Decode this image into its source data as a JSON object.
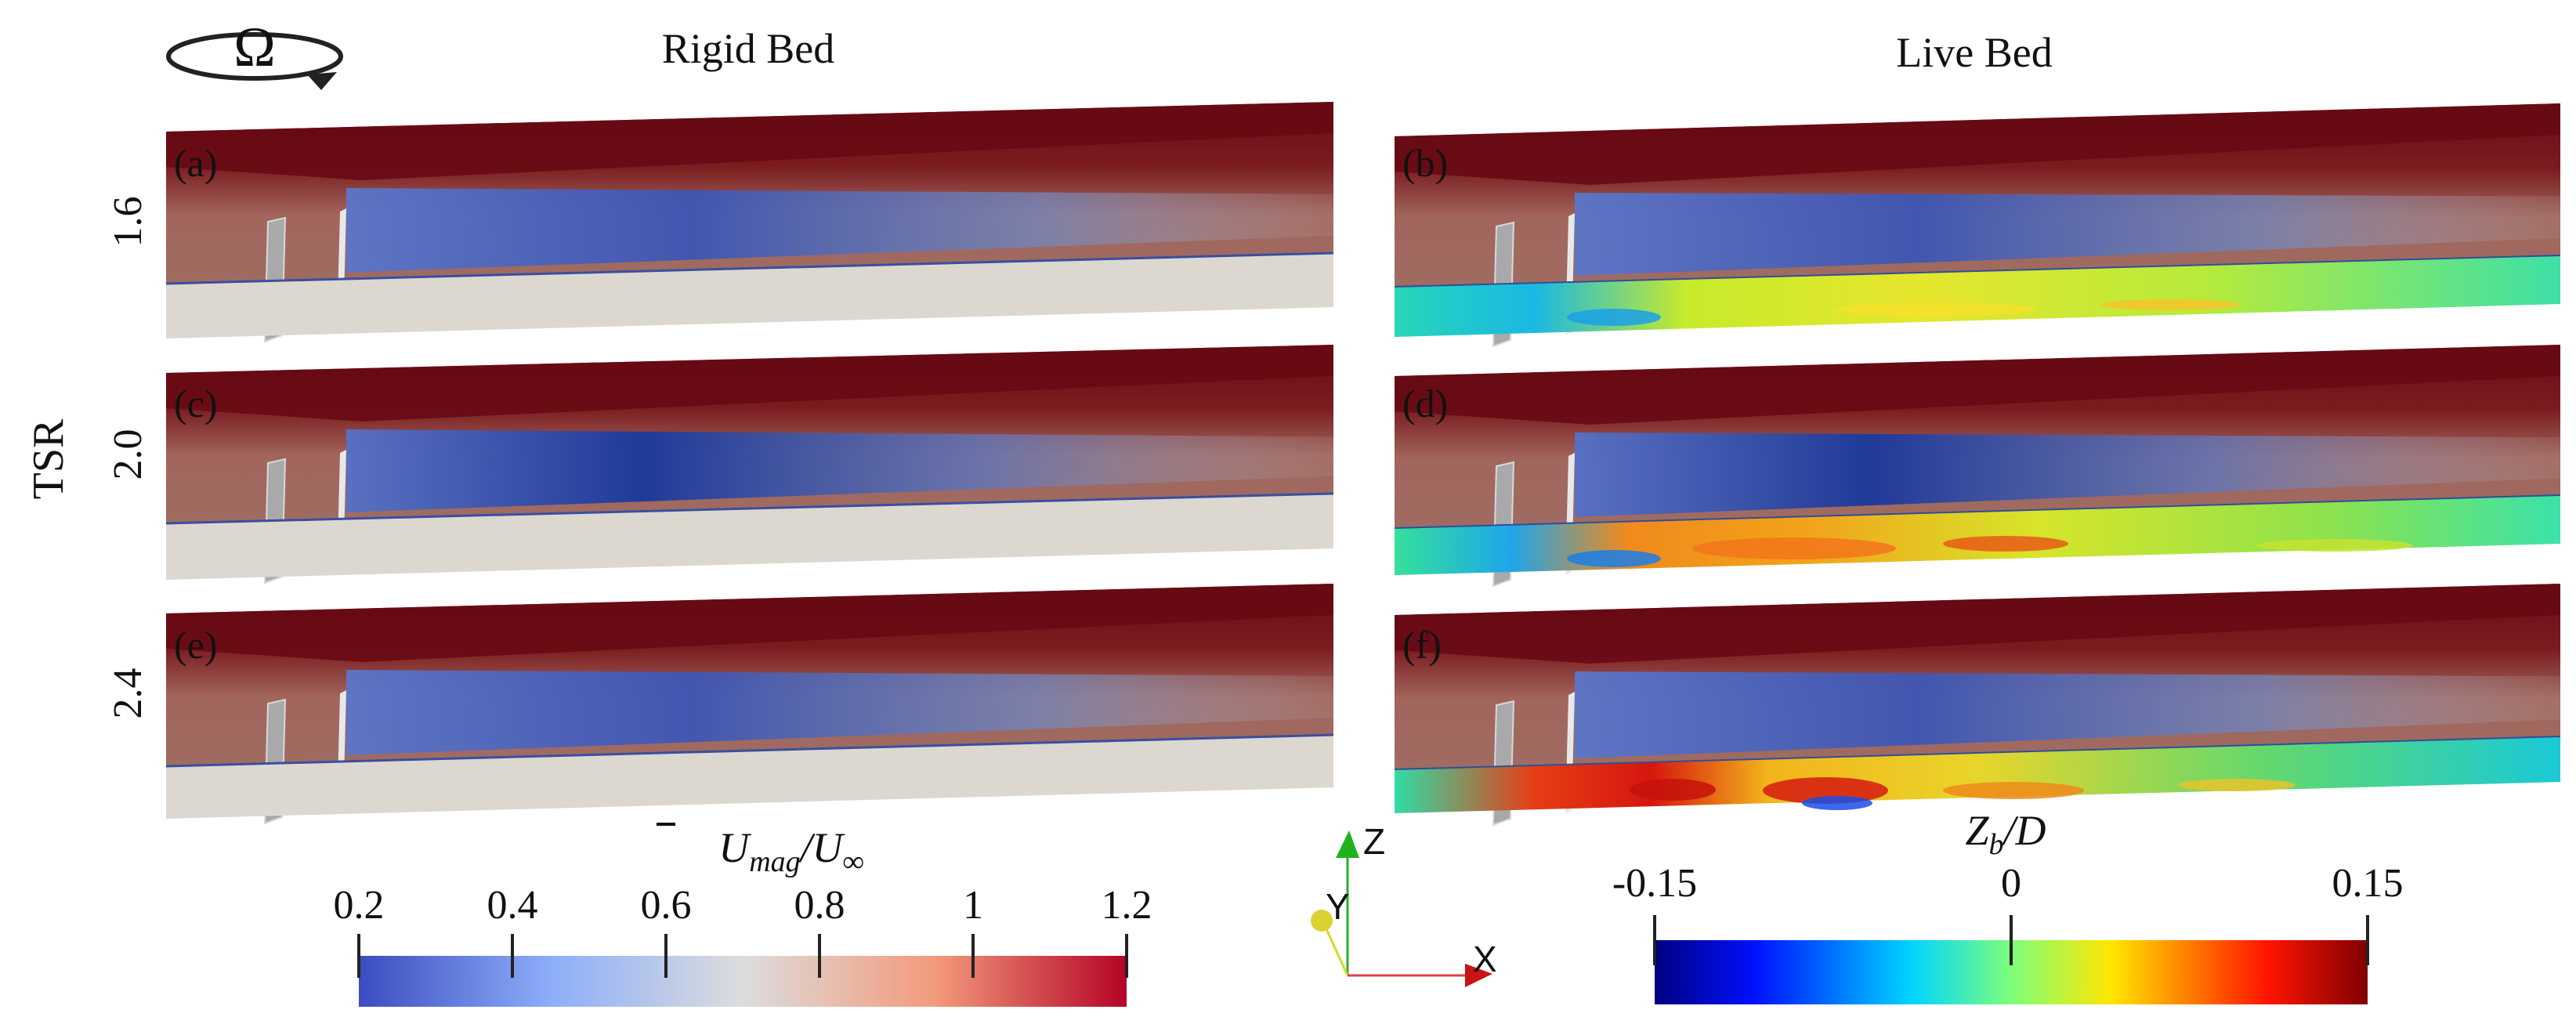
{
  "figure": {
    "omega_symbol": "Ω",
    "tsr_label": "TSR",
    "columns": [
      {
        "title": "Rigid Bed"
      },
      {
        "title": "Live Bed"
      }
    ],
    "rows": [
      {
        "tsr": "1.6"
      },
      {
        "tsr": "2.0"
      },
      {
        "tsr": "2.4"
      }
    ],
    "panels": [
      {
        "label": "(a)",
        "bed": "rigid",
        "tsr": 1.6
      },
      {
        "label": "(b)",
        "bed": "live",
        "tsr": 1.6
      },
      {
        "label": "(c)",
        "bed": "rigid",
        "tsr": 2.0
      },
      {
        "label": "(d)",
        "bed": "live",
        "tsr": 2.0
      },
      {
        "label": "(e)",
        "bed": "rigid",
        "tsr": 2.4
      },
      {
        "label": "(f)",
        "bed": "live",
        "tsr": 2.4
      }
    ],
    "velocity_colorbar": {
      "label_main": "U",
      "label_sub": "mag",
      "label_rest": "/U",
      "label_inf": "∞",
      "ticks": [
        "0.2",
        "0.4",
        "0.6",
        "0.8",
        "1",
        "1.2"
      ],
      "range": [
        0.2,
        1.2
      ]
    },
    "bed_colorbar": {
      "label_main": "Z",
      "label_sub": "b",
      "label_rest": "/D",
      "ticks": [
        "-0.15",
        "0",
        "0.15"
      ],
      "range": [
        -0.15,
        0.15
      ]
    },
    "axes_triad": {
      "x": "X",
      "y": "Y",
      "z": "Z"
    },
    "colors": {
      "velocity_low": "#3b4cc0",
      "velocity_mid": "#dddddd",
      "velocity_high": "#b40426",
      "freestream": "#670a14",
      "rigid_bed": "#ddd8cf"
    }
  }
}
